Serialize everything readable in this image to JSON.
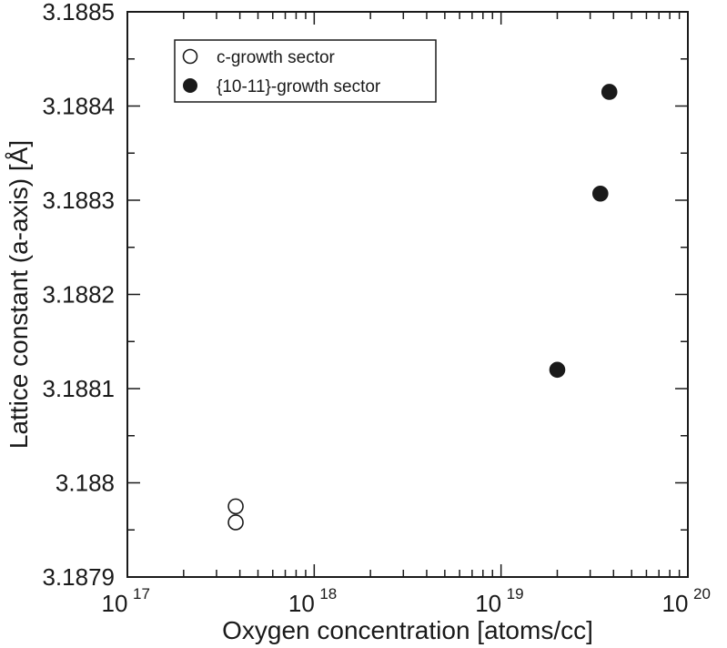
{
  "chart_data": {
    "type": "scatter",
    "title": "",
    "xlabel": "Oxygen concentration [atoms/cc]",
    "ylabel": "Lattice constant (a-axis) [Å]",
    "x_scale": "log",
    "xlim": [
      1e+17,
      1e+20
    ],
    "ylim": [
      3.1879,
      3.1885
    ],
    "x_ticks": [
      {
        "base": "10",
        "exp": "17",
        "value": 1e+17
      },
      {
        "base": "10",
        "exp": "18",
        "value": 1e+18
      },
      {
        "base": "10",
        "exp": "19",
        "value": 1e+19
      },
      {
        "base": "10",
        "exp": "20",
        "value": 1e+20
      }
    ],
    "y_ticks": [
      {
        "label": "3.1879",
        "value": 3.1879
      },
      {
        "label": "3.188",
        "value": 3.188
      },
      {
        "label": "3.1881",
        "value": 3.1881
      },
      {
        "label": "3.1882",
        "value": 3.1882
      },
      {
        "label": "3.1883",
        "value": 3.1883
      },
      {
        "label": "3.1884",
        "value": 3.1884
      },
      {
        "label": "3.1885",
        "value": 3.1885
      }
    ],
    "grid": false,
    "legend_position": "top-left",
    "series": [
      {
        "name": "c-growth sector",
        "marker": "open-circle",
        "color": "#1a1a1a",
        "points": [
          {
            "x": 3.8e+17,
            "y": 3.187975
          },
          {
            "x": 3.8e+17,
            "y": 3.187958
          }
        ]
      },
      {
        "name": "{10-11}-growth sector",
        "marker": "filled-circle",
        "color": "#1a1a1a",
        "points": [
          {
            "x": 2e+19,
            "y": 3.18812
          },
          {
            "x": 3.4e+19,
            "y": 3.188307
          },
          {
            "x": 3.8e+19,
            "y": 3.188415
          }
        ]
      }
    ]
  }
}
